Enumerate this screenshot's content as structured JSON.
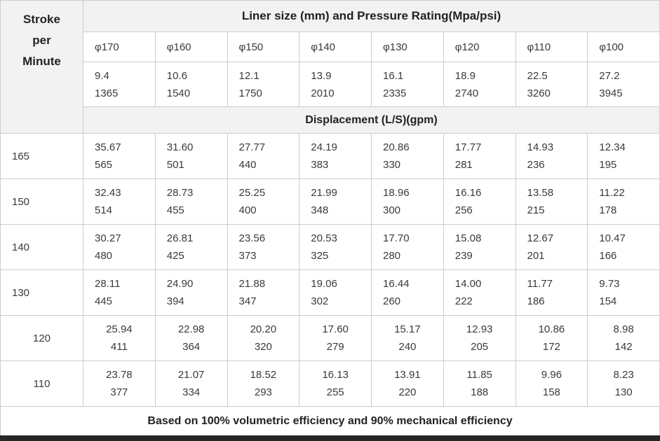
{
  "table": {
    "corner_header": [
      "Stroke",
      "per",
      "Minute"
    ],
    "main_header": "Liner size (mm) and Pressure Rating(Mpa/psi)",
    "displacement_header": "Displacement (L/S)(gpm)",
    "footer_note": "Based on 100% volumetric efficiency and 90% mechanical efficiency",
    "liner_sizes": [
      "φ170",
      "φ160",
      "φ150",
      "φ140",
      "φ130",
      "φ120",
      "φ110",
      "φ100"
    ],
    "pressure_ratings": [
      [
        "9.4",
        "1365"
      ],
      [
        "10.6",
        "1540"
      ],
      [
        "12.1",
        "1750"
      ],
      [
        "13.9",
        "2010"
      ],
      [
        "16.1",
        "2335"
      ],
      [
        "18.9",
        "2740"
      ],
      [
        "22.5",
        "3260"
      ],
      [
        "27.2",
        "3945"
      ]
    ],
    "rows": [
      {
        "stroke": "165",
        "values": [
          [
            "35.67",
            "565"
          ],
          [
            "31.60",
            "501"
          ],
          [
            "27.77",
            "440"
          ],
          [
            "24.19",
            "383"
          ],
          [
            "20.86",
            "330"
          ],
          [
            "17.77",
            "281"
          ],
          [
            "14.93",
            "236"
          ],
          [
            "12.34",
            "195"
          ]
        ]
      },
      {
        "stroke": "150",
        "values": [
          [
            "32.43",
            "514"
          ],
          [
            "28.73",
            "455"
          ],
          [
            "25.25",
            "400"
          ],
          [
            "21.99",
            "348"
          ],
          [
            "18.96",
            "300"
          ],
          [
            "16.16",
            "256"
          ],
          [
            "13.58",
            "215"
          ],
          [
            "11.22",
            "178"
          ]
        ]
      },
      {
        "stroke": "140",
        "values": [
          [
            "30.27",
            "480"
          ],
          [
            "26.81",
            "425"
          ],
          [
            "23.56",
            "373"
          ],
          [
            "20.53",
            "325"
          ],
          [
            "17.70",
            "280"
          ],
          [
            "15.08",
            "239"
          ],
          [
            "12.67",
            "201"
          ],
          [
            "10.47",
            "166"
          ]
        ]
      },
      {
        "stroke": "130",
        "values": [
          [
            "28.11",
            "445"
          ],
          [
            "24.90",
            "394"
          ],
          [
            "21.88",
            "347"
          ],
          [
            "19.06",
            "302"
          ],
          [
            "16.44",
            "260"
          ],
          [
            "14.00",
            "222"
          ],
          [
            "11.77",
            "186"
          ],
          [
            "9.73",
            "154"
          ]
        ]
      },
      {
        "stroke": "120",
        "values": [
          [
            "25.94",
            "411"
          ],
          [
            "22.98",
            "364"
          ],
          [
            "20.20",
            "320"
          ],
          [
            "17.60",
            "279"
          ],
          [
            "15.17",
            "240"
          ],
          [
            "12.93",
            "205"
          ],
          [
            "10.86",
            "172"
          ],
          [
            "8.98",
            "142"
          ]
        ]
      },
      {
        "stroke": "110",
        "values": [
          [
            "23.78",
            "377"
          ],
          [
            "21.07",
            "334"
          ],
          [
            "18.52",
            "293"
          ],
          [
            "16.13",
            "255"
          ],
          [
            "13.91",
            "220"
          ],
          [
            "11.85",
            "188"
          ],
          [
            "9.96",
            "158"
          ],
          [
            "8.23",
            "130"
          ]
        ]
      }
    ],
    "colors": {
      "header_bg": "#f2f2f2",
      "border": "#cccccc",
      "text": "#333333",
      "bottom_bar": "#262626"
    }
  }
}
